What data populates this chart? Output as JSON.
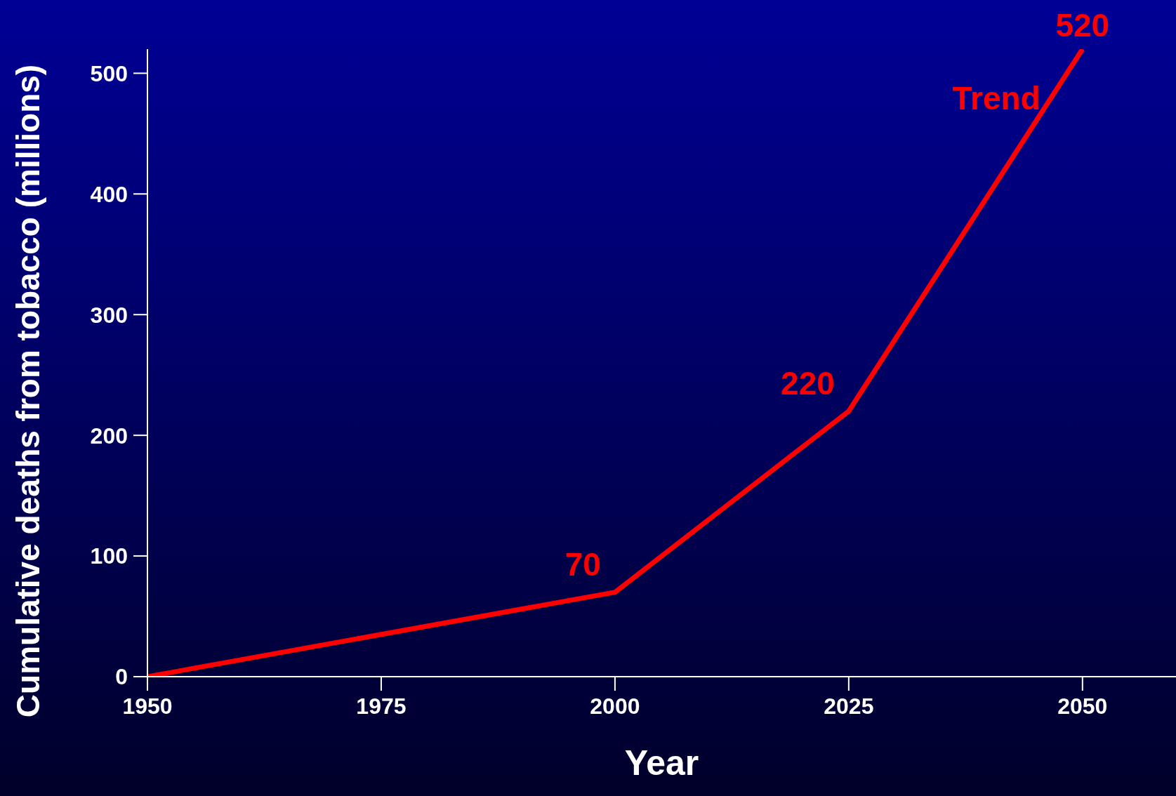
{
  "chart_data": {
    "type": "line",
    "xlabel": "Year",
    "ylabel": "Cumulative deaths from tobacco (millions)",
    "x": [
      1950,
      2000,
      2025,
      2050
    ],
    "series": [
      {
        "name": "Trend",
        "color": "#ff0000",
        "values": [
          0,
          70,
          220,
          520
        ],
        "value_labels": [
          null,
          "70",
          "220",
          "520"
        ]
      }
    ],
    "xlim": [
      1950,
      2060
    ],
    "xticks": [
      1950,
      1975,
      2000,
      2025,
      2050
    ],
    "ylim": [
      0,
      520
    ],
    "yticks": [
      0,
      100,
      200,
      300,
      400,
      500
    ],
    "grid": false,
    "legend": false,
    "marker": "none",
    "line_style": "solid"
  }
}
